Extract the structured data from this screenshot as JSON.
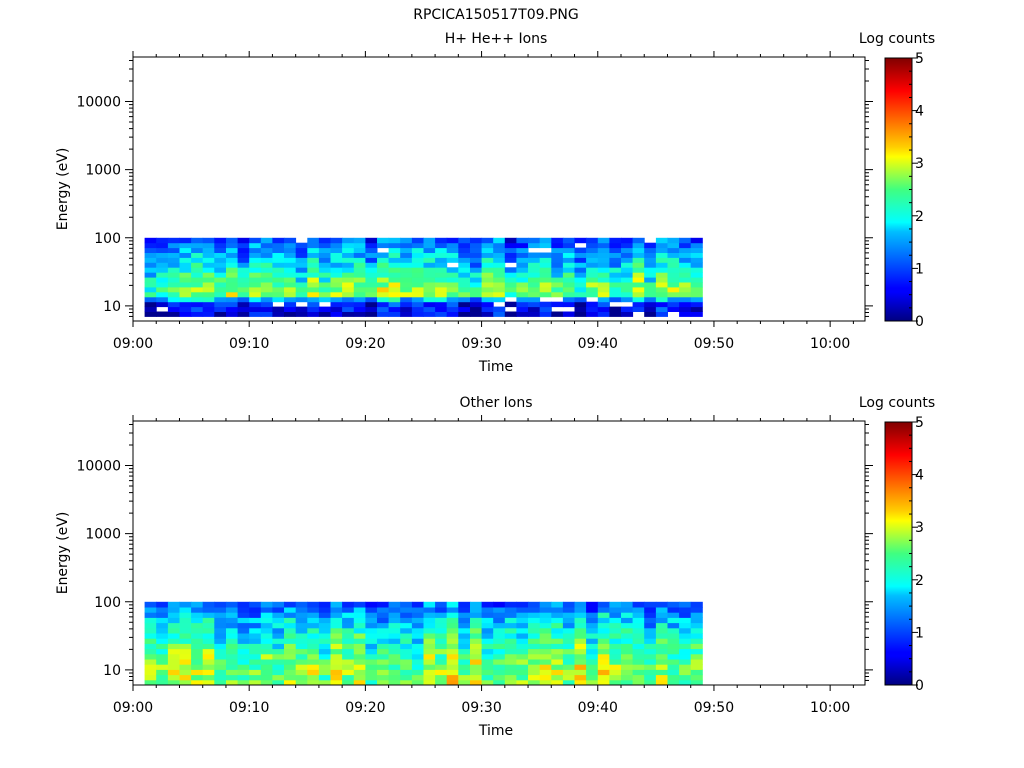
{
  "figure": {
    "title": "RPCICA150517T09.PNG"
  },
  "chart_data": [
    {
      "type": "heatmap",
      "title": "H+ He++ Ions",
      "xlabel": "Time",
      "ylabel": "Energy (eV)",
      "x_ticks": [
        "09:00",
        "09:10",
        "09:20",
        "09:30",
        "09:40",
        "09:50",
        "10:00"
      ],
      "xlim": [
        "09:00",
        "10:03"
      ],
      "y_scale": "log",
      "y_ticks": [
        10,
        100,
        1000,
        10000
      ],
      "ylim": [
        6,
        45000
      ],
      "data_time_range": [
        "09:01",
        "09:49"
      ],
      "data_energy_range": [
        7,
        100
      ],
      "colorbar": {
        "label": "Log counts",
        "range": [
          0,
          5
        ],
        "ticks": [
          "0",
          "1",
          "2",
          "3",
          "4",
          "5"
        ],
        "colormap": "jet"
      },
      "energy_profile": [
        {
          "energy": 8,
          "log_counts": 0.4
        },
        {
          "energy": 11,
          "log_counts": 0.7
        },
        {
          "energy": 15,
          "log_counts": 2.7
        },
        {
          "energy": 20,
          "log_counts": 2.5
        },
        {
          "energy": 30,
          "log_counts": 2.1
        },
        {
          "energy": 45,
          "log_counts": 1.7
        },
        {
          "energy": 70,
          "log_counts": 1.3
        },
        {
          "energy": 95,
          "log_counts": 1.0
        }
      ]
    },
    {
      "type": "heatmap",
      "title": "Other Ions",
      "xlabel": "Time",
      "ylabel": "Energy (eV)",
      "x_ticks": [
        "09:00",
        "09:10",
        "09:20",
        "09:30",
        "09:40",
        "09:50",
        "10:00"
      ],
      "xlim": [
        "09:00",
        "10:03"
      ],
      "y_scale": "log",
      "y_ticks": [
        10,
        100,
        1000,
        10000
      ],
      "ylim": [
        6,
        45000
      ],
      "data_time_range": [
        "09:01",
        "09:49"
      ],
      "data_energy_range": [
        6,
        100
      ],
      "colorbar": {
        "label": "Log counts",
        "range": [
          0,
          5
        ],
        "ticks": [
          "0",
          "1",
          "2",
          "3",
          "4",
          "5"
        ],
        "colormap": "jet"
      },
      "energy_profile": [
        {
          "energy": 7,
          "log_counts": 2.8
        },
        {
          "energy": 10,
          "log_counts": 2.8
        },
        {
          "energy": 15,
          "log_counts": 2.6
        },
        {
          "energy": 25,
          "log_counts": 2.3
        },
        {
          "energy": 40,
          "log_counts": 2.0
        },
        {
          "energy": 60,
          "log_counts": 1.7
        },
        {
          "energy": 90,
          "log_counts": 1.2
        }
      ]
    }
  ]
}
